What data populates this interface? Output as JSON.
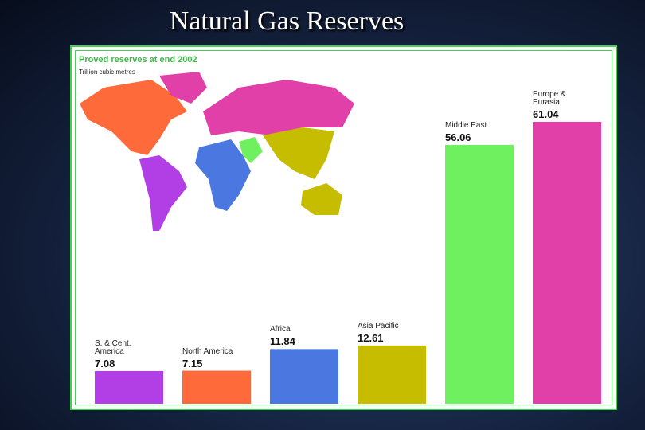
{
  "chart_data": {
    "type": "bar",
    "title": "Natural Gas Reserves",
    "subtitle": "Proved reserves at end 2002",
    "unit": "Trillion cubic metres",
    "categories": [
      "S. & Cent. America",
      "North America",
      "Africa",
      "Asia Pacific",
      "Middle East",
      "Europe & Eurasia"
    ],
    "values": [
      7.08,
      7.15,
      11.84,
      12.61,
      56.06,
      61.04
    ],
    "colors": [
      "#b23ee6",
      "#ff6a3a",
      "#4a78e0",
      "#c6bd00",
      "#6ff05e",
      "#e040a8"
    ]
  }
}
